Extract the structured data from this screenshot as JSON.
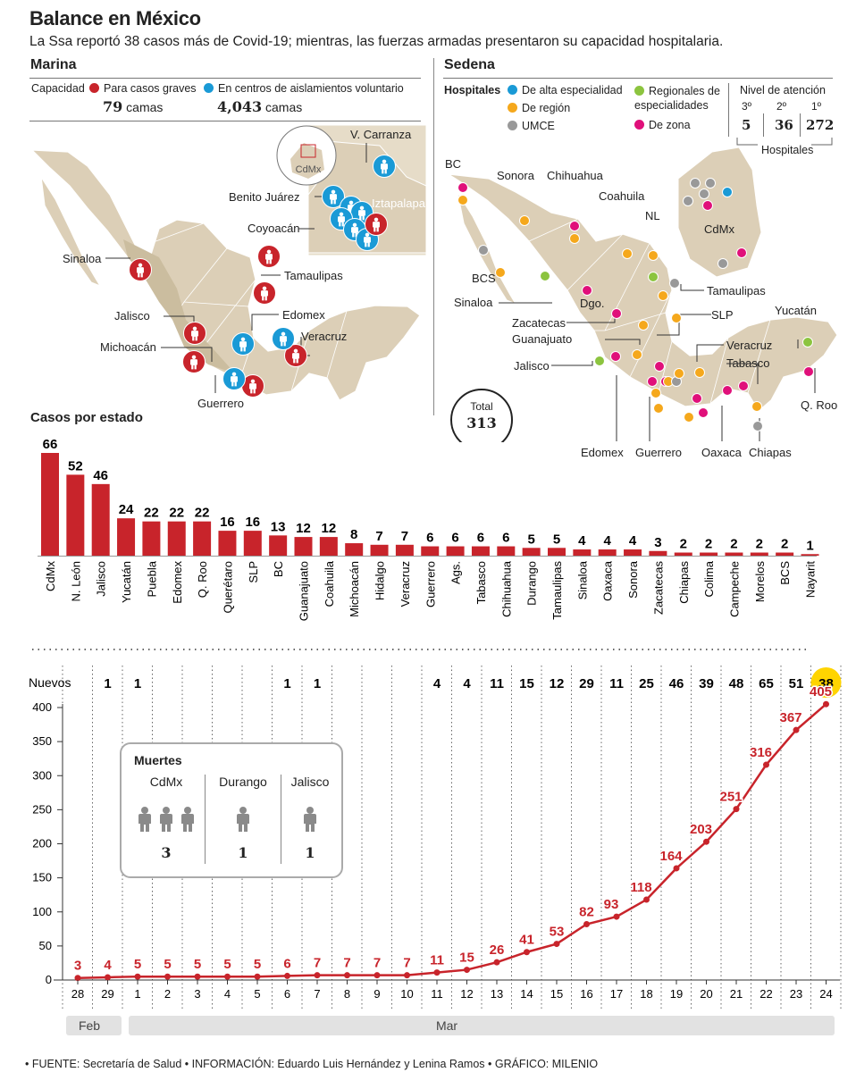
{
  "header": {
    "title": "Balance en México",
    "subtitle": "La Ssa reportó 38 casos más de Covid-19; mientras, las fuerzas armadas presentaron su capacidad hospitalaria."
  },
  "colors": {
    "red": "#c8242b",
    "blue": "#1a9ad6",
    "orange": "#f5a81c",
    "gray": "#999999",
    "green": "#8cc43f",
    "magenta": "#e0107a",
    "map": "#dccfb7",
    "yellow": "#ffd400"
  },
  "marina": {
    "title": "Marina",
    "capacity_label": "Capacidad",
    "graves_label": "Para casos graves",
    "graves_value": "79",
    "aislamiento_label": "En centros de aislamientos voluntario",
    "aislamiento_value": "4,043",
    "unit": "camas",
    "states": [
      "Sinaloa",
      "Jalisco",
      "Michoacán",
      "Guerrero",
      "Tamaulipas",
      "Edomex",
      "Veracruz"
    ],
    "inset": {
      "cdmx": "CdMx",
      "labels": [
        "V. Carranza",
        "Benito Juárez",
        "Coyoacán",
        "Iztapalapa"
      ]
    }
  },
  "sedena": {
    "title": "Sedena",
    "hospitales_label": "Hospitales",
    "legend": [
      "De alta especialidad",
      "De región",
      "UMCE",
      "Regionales de especialidades",
      "De zona"
    ],
    "nivel": {
      "title": "Nivel de atención",
      "levels": [
        "3º",
        "2º",
        "1º"
      ],
      "values": [
        "5",
        "36",
        "272"
      ],
      "footer": "Hospitales"
    },
    "total_label": "Total",
    "total_value": "313",
    "states": [
      "BC",
      "Sonora",
      "Chihuahua",
      "Coahuila",
      "NL",
      "BCS",
      "Sinaloa",
      "Dgo.",
      "Tamaulipas",
      "Zacatecas",
      "SLP",
      "Guanajuato",
      "Jalisco",
      "Veracruz",
      "Tabasco",
      "Yucatán",
      "Q. Roo",
      "Edomex",
      "Guerrero",
      "Oaxaca",
      "Chiapas",
      "CdMx"
    ]
  },
  "chart_data": [
    {
      "type": "bar",
      "title": "Casos por estado",
      "categories": [
        "CdMx",
        "N. León",
        "Jalisco",
        "Yucatán",
        "Puebla",
        "Edomex",
        "Q. Roo",
        "Querétaro",
        "SLP",
        "BC",
        "Guanajuato",
        "Coahuila",
        "Michoacán",
        "Hidalgo",
        "Veracruz",
        "Guerrero",
        "Ags.",
        "Tabasco",
        "Chihuahua",
        "Durango",
        "Tamaulipas",
        "Sinaloa",
        "Oaxaca",
        "Sonora",
        "Zacatecas",
        "Chiapas",
        "Colima",
        "Campeche",
        "Morelos",
        "BCS",
        "Nayarit"
      ],
      "values": [
        66,
        52,
        46,
        24,
        22,
        22,
        22,
        16,
        16,
        13,
        12,
        12,
        8,
        7,
        7,
        6,
        6,
        6,
        6,
        5,
        5,
        4,
        4,
        4,
        3,
        2,
        2,
        2,
        2,
        2,
        1
      ]
    },
    {
      "type": "line",
      "x": [
        "28",
        "29",
        "1",
        "2",
        "3",
        "4",
        "5",
        "6",
        "7",
        "8",
        "9",
        "10",
        "11",
        "12",
        "13",
        "14",
        "15",
        "16",
        "17",
        "18",
        "19",
        "20",
        "21",
        "22",
        "23",
        "24"
      ],
      "values": [
        3,
        4,
        5,
        5,
        5,
        5,
        5,
        6,
        7,
        7,
        7,
        7,
        11,
        15,
        26,
        41,
        53,
        82,
        93,
        118,
        164,
        203,
        251,
        316,
        367,
        405
      ],
      "value_labels": [
        "3",
        "4",
        "5",
        "5",
        "5",
        "5",
        "5",
        "6",
        "7",
        "7",
        "7",
        "7",
        "11",
        "15",
        "26",
        "41",
        "53",
        "82",
        "93",
        "118",
        "164",
        "203",
        "251",
        "316",
        "367",
        "405"
      ],
      "nuevos_label": "Nuevos",
      "nuevos": [
        "",
        "1",
        "1",
        "",
        "",
        "",
        "",
        "1",
        "1",
        "",
        "",
        "",
        "4",
        "4",
        "11",
        "15",
        "12",
        "29",
        "11",
        "25",
        "46",
        "39",
        "48",
        "65",
        "51",
        "38"
      ],
      "yticks": [
        "0",
        "50",
        "100",
        "150",
        "200",
        "250",
        "300",
        "350",
        "400"
      ],
      "ylim": [
        0,
        400
      ],
      "months": [
        "Feb",
        "Mar"
      ]
    }
  ],
  "muertes": {
    "title": "Muertes",
    "groups": [
      {
        "state": "CdMx",
        "count": "3",
        "n": 3
      },
      {
        "state": "Durango",
        "count": "1",
        "n": 1
      },
      {
        "state": "Jalisco",
        "count": "1",
        "n": 1
      }
    ]
  },
  "footer": "• FUENTE: Secretaría de Salud  • INFORMACIÓN: Eduardo Luis Hernández y Lenina Ramos  • GRÁFICO: MILENIO"
}
